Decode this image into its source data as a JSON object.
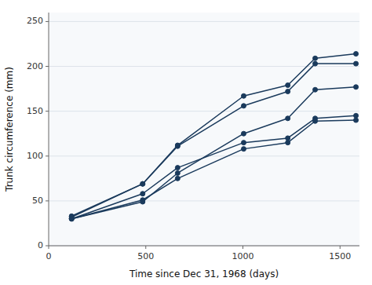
{
  "chart_data": {
    "type": "line",
    "xlabel": "Time since Dec 31, 1968 (days)",
    "ylabel": "Trunk circumference (mm)",
    "color": "#1a3a5c",
    "marker": "circle",
    "grid": "y",
    "x": [
      118,
      484,
      664,
      1004,
      1231,
      1372,
      1582
    ],
    "series": [
      {
        "values": [
          30,
          51,
          75,
          108,
          115,
          139,
          140
        ]
      },
      {
        "values": [
          33,
          69,
          111,
          156,
          172,
          203,
          203
        ]
      },
      {
        "values": [
          30,
          58,
          87,
          115,
          120,
          142,
          145
        ]
      },
      {
        "values": [
          32,
          69,
          112,
          167,
          179,
          209,
          214
        ]
      },
      {
        "values": [
          30,
          49,
          81,
          125,
          142,
          174,
          177
        ]
      }
    ],
    "xlim": [
      0,
      1600
    ],
    "ylim": [
      0,
      260
    ],
    "xticks": [
      0,
      500,
      1000,
      1500
    ],
    "yticks": [
      0,
      50,
      100,
      150,
      200,
      250
    ]
  }
}
